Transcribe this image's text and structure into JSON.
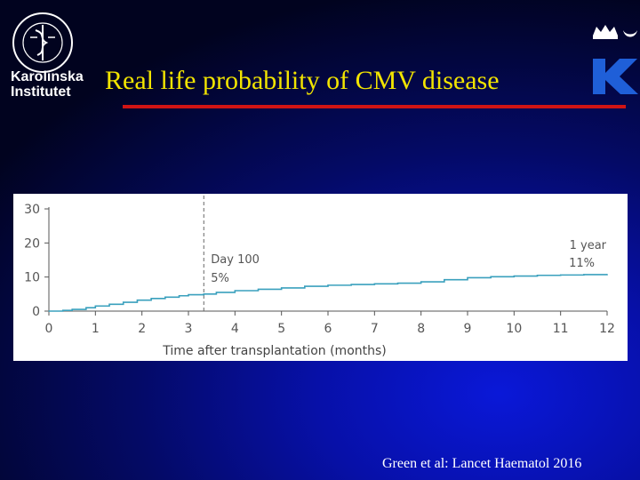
{
  "header": {
    "title": "Real life probability of CMV disease",
    "institution_line1": "Karolinska",
    "institution_line2": "Institutet",
    "seal_text": "KAROLINSKA INSTITUTET 1810",
    "k_logo_letter": "K"
  },
  "colors": {
    "title": "#f2e400",
    "rule": "#d01414",
    "curve": "#3aa0bd",
    "k_logo": "#1f5fd8"
  },
  "chart_data": {
    "type": "line",
    "step": true,
    "title": "",
    "xlabel": "Time after transplantation (months)",
    "ylabel": "",
    "xlim": [
      0,
      12
    ],
    "ylim": [
      0,
      30
    ],
    "x_ticks": [
      "0",
      "1",
      "2",
      "3",
      "4",
      "5",
      "6",
      "7",
      "8",
      "9",
      "10",
      "11",
      "12"
    ],
    "y_ticks": [
      "0",
      "10",
      "20",
      "30"
    ],
    "grid": false,
    "reference_line": {
      "x": 3.33,
      "style": "dashed"
    },
    "annotations": [
      {
        "text": "Day 100",
        "x": 3.33
      },
      {
        "text": "5%",
        "x": 3.33,
        "y": 5
      },
      {
        "text": "1 year",
        "x": 12
      },
      {
        "text": "11%",
        "x": 12,
        "y": 11
      }
    ],
    "series": [
      {
        "x": [
          0,
          0.3,
          0.5,
          0.8,
          1.0,
          1.3,
          1.6,
          1.9,
          2.2,
          2.5,
          2.8,
          3.0,
          3.33,
          3.6,
          4.0,
          4.5,
          5.0,
          5.5,
          6.0,
          6.5,
          7.0,
          7.5,
          8.0,
          8.5,
          9.0,
          9.5,
          10.0,
          10.5,
          11.0,
          11.5,
          12.0
        ],
        "y": [
          0,
          0.2,
          0.5,
          1.0,
          1.5,
          2.0,
          2.6,
          3.2,
          3.7,
          4.1,
          4.5,
          4.8,
          5.0,
          5.5,
          6.0,
          6.4,
          6.8,
          7.3,
          7.6,
          7.8,
          8.0,
          8.2,
          8.6,
          9.2,
          9.8,
          10.1,
          10.3,
          10.5,
          10.6,
          10.7,
          10.8
        ]
      }
    ]
  },
  "citation": "Green et al: Lancet Haematol 2016"
}
